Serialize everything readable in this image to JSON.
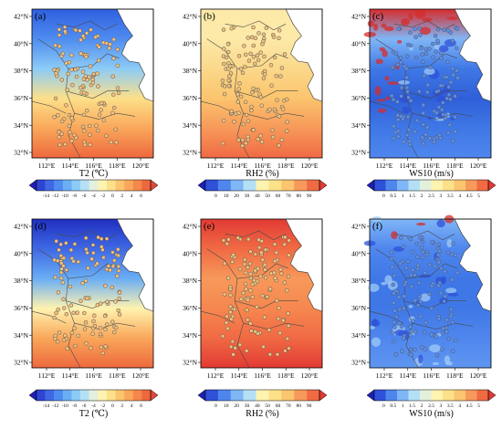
{
  "lat_labels": [
    "42°N",
    "40°N",
    "38°N",
    "36°N",
    "34°N",
    "32°N"
  ],
  "lon_labels": [
    "112°E",
    "114°E",
    "116°E",
    "118°E",
    "120°E"
  ],
  "panels": [
    {
      "letter": "(a)",
      "var": "t2"
    },
    {
      "letter": "(b)",
      "var": "rh2"
    },
    {
      "letter": "(c)",
      "var": "ws10"
    },
    {
      "letter": "(d)",
      "var": "t2"
    },
    {
      "letter": "(e)",
      "var": "rh2"
    },
    {
      "letter": "(f)",
      "var": "ws10"
    }
  ],
  "colorbars": {
    "t2": {
      "title": "T2 (℃)",
      "ticks": [
        "-14",
        "-12",
        "-10",
        "-8",
        "-6",
        "-4",
        "-2",
        "0",
        "2",
        "4",
        "6"
      ],
      "colors": [
        "#1f1fb4",
        "#2f44d2",
        "#3f68e4",
        "#4f8cf0",
        "#6aaef4",
        "#8ccbf6",
        "#b4e0f5",
        "#e2f0dc",
        "#fff3b0",
        "#fde08a",
        "#fbc46e",
        "#f9a75a",
        "#f5884a",
        "#ee683e",
        "#e24838"
      ]
    },
    "rh2": {
      "title": "RH2 (%)",
      "ticks": [
        "0",
        "10",
        "20",
        "30",
        "40",
        "50",
        "60",
        "70",
        "80",
        "90"
      ],
      "colors": [
        "#1f1fb4",
        "#2f50d8",
        "#4f86ee",
        "#7fb6f6",
        "#b4e0f5",
        "#fff3b0",
        "#fde08a",
        "#fbc46e",
        "#f7995a",
        "#f06a44",
        "#e23a34"
      ]
    },
    "ws10": {
      "title": "WS10 (m/s)",
      "ticks": [
        "0",
        "0.5",
        "1",
        "1.5",
        "2",
        "2.5",
        "3",
        "3.5",
        "4",
        "4.5",
        "5"
      ],
      "colors": [
        "#1f1fb4",
        "#2f50d8",
        "#4f86ee",
        "#7fb6f6",
        "#b4e0f5",
        "#e2f0dc",
        "#fff3b0",
        "#fde08a",
        "#fbc46e",
        "#f7995a",
        "#f06a44",
        "#e23a34"
      ]
    }
  },
  "field_colors": {
    "t2_top": [
      "#2f5fe0",
      "#4f8cf0",
      "#8ccbf6",
      "#fde08a",
      "#f9a75a",
      "#ee683e"
    ],
    "t2_bottom": [
      "#1f2fc0",
      "#3f68e4",
      "#6aaef4",
      "#fff3b0",
      "#f9a75a",
      "#ee683e"
    ],
    "rh2_top": [
      "#fde9a8",
      "#fde9a8",
      "#fbd88a",
      "#fbc46e",
      "#f7995a",
      "#f06a44"
    ],
    "rh2_bottom": [
      "#e23a34",
      "#f06a44",
      "#f7995a",
      "#f6874f",
      "#f06a44",
      "#e23a34"
    ],
    "ws10_top": [
      "#d62c2c",
      "#7fb6f6",
      "#3f78e6",
      "#2f5fd8",
      "#3f78e6",
      "#4f86ee"
    ],
    "ws10_bottom": [
      "#7fb6f6",
      "#4f86ee",
      "#3f78e6",
      "#3f78e6",
      "#4f86ee",
      "#5f96f0"
    ],
    "sea": "#ffffff"
  }
}
